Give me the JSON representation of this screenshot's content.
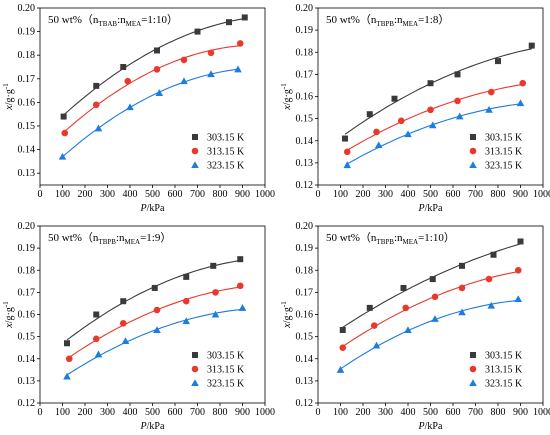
{
  "chart_data": [
    {
      "type": "scatter",
      "title": [
        "50 wt%（n",
        "TBAB",
        ":n",
        "MEA",
        "=1:10）"
      ],
      "x_label": [
        "P",
        "/kPa"
      ],
      "y_label": [
        "x",
        "/g·g",
        "-1"
      ],
      "xlim": [
        0,
        1000
      ],
      "xticks": [
        0,
        100,
        200,
        300,
        400,
        500,
        600,
        700,
        800,
        900,
        1000
      ],
      "ylim": [
        0.125,
        0.2
      ],
      "yticks": [
        0.13,
        0.14,
        0.15,
        0.16,
        0.17,
        0.18,
        0.19,
        {
          "value": 0.2,
          "label": "0.20"
        }
      ],
      "legend": "lower right",
      "series": [
        {
          "name": "303.15 K",
          "color": "#3a3a3a",
          "marker": "square",
          "x": [
            105,
            250,
            370,
            520,
            700,
            840,
            910
          ],
          "values": [
            0.154,
            0.167,
            0.175,
            0.182,
            0.19,
            0.194,
            0.196
          ]
        },
        {
          "name": "313.15 K",
          "color": "#e8392c",
          "marker": "circle",
          "x": [
            110,
            250,
            390,
            520,
            640,
            760,
            890
          ],
          "values": [
            0.147,
            0.159,
            0.169,
            0.174,
            0.178,
            0.181,
            0.185
          ]
        },
        {
          "name": "323.15 K",
          "color": "#1c7ce0",
          "marker": "triangle",
          "x": [
            100,
            260,
            400,
            530,
            640,
            760,
            880
          ],
          "values": [
            0.137,
            0.149,
            0.158,
            0.164,
            0.169,
            0.172,
            0.174
          ]
        }
      ]
    },
    {
      "type": "scatter",
      "title": [
        "50 wt%（n",
        "TBPB",
        ":n",
        "MEA",
        "=1:8）"
      ],
      "x_label": [
        "P",
        "/kPa"
      ],
      "y_label": [
        "x",
        "/g·g",
        "-1"
      ],
      "xlim": [
        0,
        1000
      ],
      "xticks": [
        0,
        100,
        200,
        300,
        400,
        500,
        600,
        700,
        800,
        900,
        1000
      ],
      "ylim": [
        0.12,
        0.2
      ],
      "yticks": [
        0.12,
        0.13,
        0.14,
        0.15,
        0.16,
        0.17,
        0.18,
        0.19,
        {
          "value": 0.2,
          "label": "0.20"
        }
      ],
      "legend": "lower right",
      "series": [
        {
          "name": "303.15 K",
          "color": "#3a3a3a",
          "marker": "square",
          "x": [
            120,
            230,
            340,
            500,
            620,
            800,
            950
          ],
          "values": [
            0.141,
            0.152,
            0.159,
            0.166,
            0.17,
            0.176,
            0.183
          ]
        },
        {
          "name": "313.15 K",
          "color": "#e8392c",
          "marker": "circle",
          "x": [
            130,
            260,
            370,
            500,
            620,
            770,
            910
          ],
          "values": [
            0.135,
            0.144,
            0.149,
            0.154,
            0.158,
            0.162,
            0.166
          ]
        },
        {
          "name": "323.15 K",
          "color": "#1c7ce0",
          "marker": "triangle",
          "x": [
            130,
            270,
            400,
            510,
            630,
            760,
            900
          ],
          "values": [
            0.129,
            0.138,
            0.143,
            0.147,
            0.151,
            0.154,
            0.157
          ]
        }
      ]
    },
    {
      "type": "scatter",
      "title": [
        "50 wt%（n",
        "TBPB",
        ":n",
        "MEA",
        "=1:9）"
      ],
      "x_label": [
        "P",
        "/kPa"
      ],
      "y_label": [
        "x",
        "/g·g",
        "-1"
      ],
      "xlim": [
        0,
        1000
      ],
      "xticks": [
        0,
        100,
        200,
        300,
        400,
        500,
        600,
        700,
        800,
        900,
        1000
      ],
      "ylim": [
        0.12,
        0.2
      ],
      "yticks": [
        0.12,
        0.13,
        0.14,
        0.15,
        0.16,
        0.17,
        0.18,
        0.19,
        {
          "value": 0.2,
          "label": "0.20"
        }
      ],
      "legend": "lower right",
      "series": [
        {
          "name": "303.15 K",
          "color": "#3a3a3a",
          "marker": "square",
          "x": [
            120,
            250,
            370,
            510,
            650,
            770,
            890
          ],
          "values": [
            0.147,
            0.16,
            0.166,
            0.172,
            0.177,
            0.182,
            0.185
          ]
        },
        {
          "name": "313.15 K",
          "color": "#e8392c",
          "marker": "circle",
          "x": [
            130,
            250,
            370,
            520,
            650,
            780,
            890
          ],
          "values": [
            0.14,
            0.149,
            0.156,
            0.162,
            0.166,
            0.17,
            0.173
          ]
        },
        {
          "name": "323.15 K",
          "color": "#1c7ce0",
          "marker": "triangle",
          "x": [
            120,
            260,
            380,
            520,
            650,
            780,
            900
          ],
          "values": [
            0.132,
            0.142,
            0.148,
            0.153,
            0.157,
            0.16,
            0.163
          ]
        }
      ]
    },
    {
      "type": "scatter",
      "title": [
        "50 wt%（n",
        "TBPB",
        ":n",
        "MEA",
        "=1:10）"
      ],
      "x_label": [
        "P",
        "/kPa"
      ],
      "y_label": [
        "x",
        "/g·g",
        "-1"
      ],
      "xlim": [
        0,
        1000
      ],
      "xticks": [
        0,
        100,
        200,
        300,
        400,
        500,
        600,
        700,
        800,
        900,
        1000
      ],
      "ylim": [
        0.12,
        0.2
      ],
      "yticks": [
        0.12,
        0.13,
        0.14,
        0.15,
        0.16,
        0.17,
        0.18,
        0.19,
        {
          "value": 0.2,
          "label": "0.20"
        }
      ],
      "legend": "lower right",
      "series": [
        {
          "name": "303.15 K",
          "color": "#3a3a3a",
          "marker": "square",
          "x": [
            110,
            230,
            380,
            510,
            640,
            780,
            900
          ],
          "values": [
            0.153,
            0.163,
            0.172,
            0.176,
            0.182,
            0.187,
            0.193
          ]
        },
        {
          "name": "313.15 K",
          "color": "#e8392c",
          "marker": "circle",
          "x": [
            110,
            250,
            390,
            520,
            640,
            760,
            890
          ],
          "values": [
            0.145,
            0.155,
            0.163,
            0.168,
            0.172,
            0.176,
            0.18
          ]
        },
        {
          "name": "323.15 K",
          "color": "#1c7ce0",
          "marker": "triangle",
          "x": [
            100,
            260,
            400,
            520,
            640,
            770,
            890
          ],
          "values": [
            0.135,
            0.146,
            0.153,
            0.158,
            0.161,
            0.164,
            0.167
          ]
        }
      ]
    }
  ]
}
